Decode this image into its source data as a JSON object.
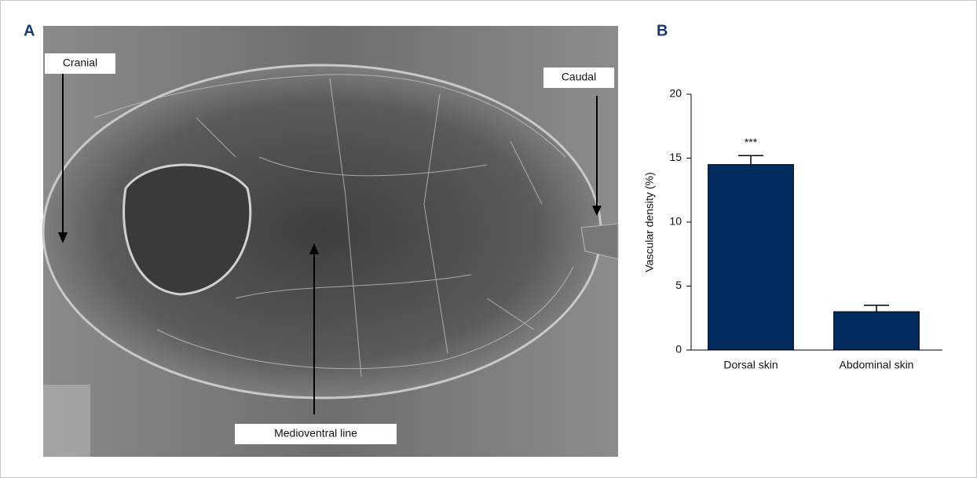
{
  "panel_a": {
    "label": "A",
    "annotations": [
      "Cranial",
      "Caudal",
      "Medioventral line"
    ]
  },
  "chart_data": {
    "type": "bar",
    "label": "B",
    "ylabel": "Vascular density (%)",
    "categories": [
      "Dorsal skin",
      "Abdominal skin"
    ],
    "values": [
      14.5,
      3.0
    ],
    "errors": [
      0.7,
      0.5
    ],
    "significance": [
      "***",
      null
    ],
    "color": "#002b5c",
    "ylim": [
      0,
      20
    ],
    "yticks": [
      0,
      5,
      10,
      15,
      20
    ],
    "grid": false
  }
}
